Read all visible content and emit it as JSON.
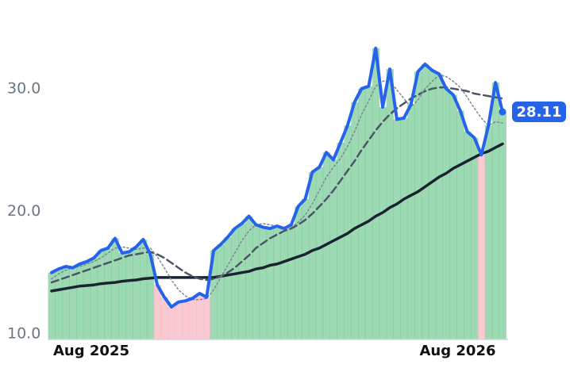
{
  "chart_data": {
    "type": "line",
    "x": [
      0,
      1,
      2,
      3,
      4,
      5,
      6,
      7,
      8,
      9,
      10,
      11,
      12,
      13,
      14,
      15,
      16,
      17,
      18,
      19,
      20,
      21,
      22,
      23,
      24,
      25,
      26,
      27,
      28,
      29,
      30,
      31,
      32,
      33,
      34,
      35,
      36,
      37,
      38,
      39,
      40,
      41,
      42,
      43,
      44,
      45,
      46,
      47,
      48,
      49,
      50,
      51,
      52,
      53,
      54,
      55,
      56,
      57,
      58,
      59,
      60,
      61,
      62,
      63,
      64
    ],
    "xlim": [
      0,
      64
    ],
    "xticks": [
      {
        "value": 0,
        "label": "Aug 2025"
      },
      {
        "value": 52,
        "label": "Aug 2026"
      }
    ],
    "ylim": [
      9.55,
      34
    ],
    "yticks": [
      {
        "value": 10,
        "label": "10.0"
      },
      {
        "value": 20,
        "label": "20.0"
      },
      {
        "value": 30,
        "label": "30.0"
      }
    ],
    "grid": false,
    "fill_colors": {
      "up": "#5cc281",
      "down": "#f7a6b4"
    },
    "series": [
      {
        "color": "#2563eb",
        "style": "solid",
        "width": 4,
        "values": [
          15.0,
          15.3,
          15.5,
          15.4,
          15.7,
          15.9,
          16.2,
          16.8,
          17.0,
          17.8,
          16.6,
          16.7,
          17.1,
          17.7,
          16.5,
          14.0,
          13.0,
          12.2,
          12.6,
          12.7,
          12.9,
          13.3,
          13.0,
          16.8,
          17.3,
          17.9,
          18.6,
          19.0,
          19.6,
          18.9,
          18.7,
          18.6,
          18.8,
          18.6,
          18.9,
          20.4,
          21.0,
          23.2,
          23.6,
          24.8,
          24.2,
          25.6,
          27.0,
          28.9,
          30.0,
          30.2,
          33.3,
          28.5,
          31.6,
          27.5,
          27.6,
          28.7,
          31.4,
          32.0,
          31.5,
          31.2,
          30.0,
          29.5,
          28.2,
          26.5,
          26.0,
          24.6,
          27.0,
          30.5,
          28.11
        ]
      },
      {
        "color": "#7a8696",
        "style": "dotted",
        "width": 1.5,
        "values": [
          14.5,
          14.9,
          15.2,
          15.4,
          15.5,
          15.7,
          15.9,
          16.2,
          16.6,
          17.0,
          17.1,
          17.0,
          16.9,
          17.0,
          17.0,
          16.3,
          15.4,
          14.4,
          13.6,
          13.1,
          12.8,
          12.8,
          12.9,
          13.6,
          14.6,
          15.6,
          16.6,
          17.6,
          18.4,
          18.9,
          19.0,
          18.9,
          18.8,
          18.7,
          18.7,
          19.1,
          19.7,
          20.6,
          21.7,
          22.8,
          23.6,
          24.3,
          25.3,
          26.5,
          27.9,
          29.0,
          30.2,
          30.6,
          30.7,
          29.9,
          29.2,
          28.5,
          29.1,
          30.0,
          30.6,
          31.1,
          31.0,
          30.6,
          30.1,
          29.3,
          28.4,
          27.6,
          27.0,
          27.3,
          27.2
        ]
      },
      {
        "color": "#4b5567",
        "style": "dashed",
        "width": 2.5,
        "values": [
          14.2,
          14.4,
          14.6,
          14.8,
          15.0,
          15.2,
          15.4,
          15.6,
          15.8,
          16.0,
          16.2,
          16.4,
          16.5,
          16.6,
          16.7,
          16.5,
          16.2,
          15.8,
          15.4,
          15.0,
          14.7,
          14.5,
          14.4,
          14.5,
          14.7,
          15.0,
          15.4,
          15.9,
          16.4,
          17.0,
          17.4,
          17.8,
          18.1,
          18.4,
          18.6,
          18.9,
          19.3,
          19.8,
          20.4,
          21.0,
          21.7,
          22.5,
          23.3,
          24.1,
          25.0,
          25.8,
          26.6,
          27.3,
          27.9,
          28.4,
          28.8,
          29.2,
          29.5,
          29.8,
          30.0,
          30.1,
          30.1,
          30.0,
          29.9,
          29.8,
          29.6,
          29.5,
          29.4,
          29.3,
          29.2
        ]
      },
      {
        "color": "#1b2333",
        "style": "solid",
        "width": 3.5,
        "values": [
          13.5,
          13.6,
          13.7,
          13.8,
          13.9,
          13.95,
          14.0,
          14.1,
          14.15,
          14.2,
          14.3,
          14.35,
          14.4,
          14.5,
          14.55,
          14.6,
          14.6,
          14.6,
          14.6,
          14.6,
          14.6,
          14.6,
          14.6,
          14.6,
          14.7,
          14.8,
          14.9,
          15.0,
          15.1,
          15.3,
          15.4,
          15.6,
          15.7,
          15.9,
          16.1,
          16.3,
          16.5,
          16.8,
          17.0,
          17.3,
          17.6,
          17.9,
          18.2,
          18.6,
          18.9,
          19.2,
          19.6,
          19.9,
          20.3,
          20.6,
          21.0,
          21.3,
          21.6,
          22.0,
          22.4,
          22.8,
          23.1,
          23.5,
          23.8,
          24.1,
          24.4,
          24.7,
          24.9,
          25.2,
          25.5
        ]
      }
    ]
  }
}
